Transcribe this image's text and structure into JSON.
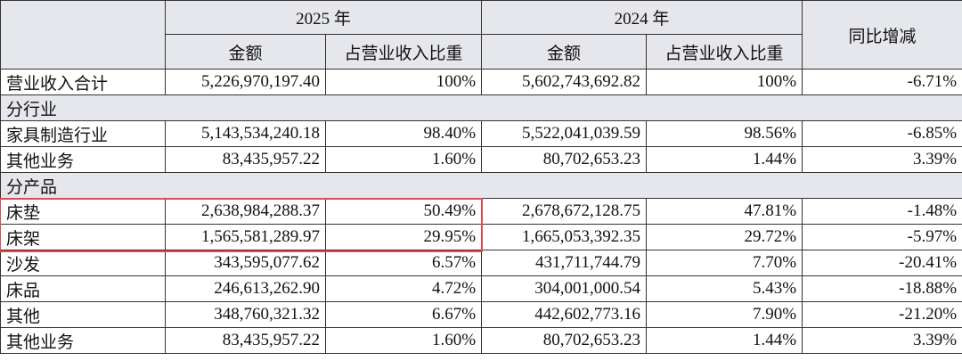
{
  "header": {
    "years": [
      "2025 年",
      "2024 年"
    ],
    "columns": [
      "金额",
      "占营业收入比重",
      "金额",
      "占营业收入比重"
    ],
    "yoy": "同比增减"
  },
  "table": {
    "rows": [
      [
        "营业收入合计",
        "5,226,970,197.40",
        "100%",
        "5,602,743,692.82",
        "100%",
        "-6.71%"
      ],
      [
        "分行业"
      ],
      [
        "家具制造行业",
        "5,143,534,240.18",
        "98.40%",
        "5,522,041,039.59",
        "98.56%",
        "-6.85%"
      ],
      [
        "其他业务",
        "83,435,957.22",
        "1.60%",
        "80,702,653.23",
        "1.44%",
        "3.39%"
      ],
      [
        "分产品"
      ],
      [
        "床垫",
        "2,638,984,288.37",
        "50.49%",
        "2,678,672,128.75",
        "47.81%",
        "-1.48%"
      ],
      [
        "床架",
        "1,565,581,289.97",
        "29.95%",
        "1,665,053,392.35",
        "29.72%",
        "-5.97%"
      ],
      [
        "沙发",
        "343,595,077.62",
        "6.57%",
        "431,711,744.79",
        "7.70%",
        "-20.41%"
      ],
      [
        "床品",
        "246,613,262.90",
        "4.72%",
        "304,001,000.54",
        "5.43%",
        "-18.88%"
      ],
      [
        "其他",
        "348,760,321.32",
        "6.67%",
        "442,602,773.16",
        "7.90%",
        "-21.20%"
      ],
      [
        "其他业务",
        "83,435,957.22",
        "1.60%",
        "80,702,653.23",
        "1.44%",
        "3.39%"
      ]
    ]
  }
}
